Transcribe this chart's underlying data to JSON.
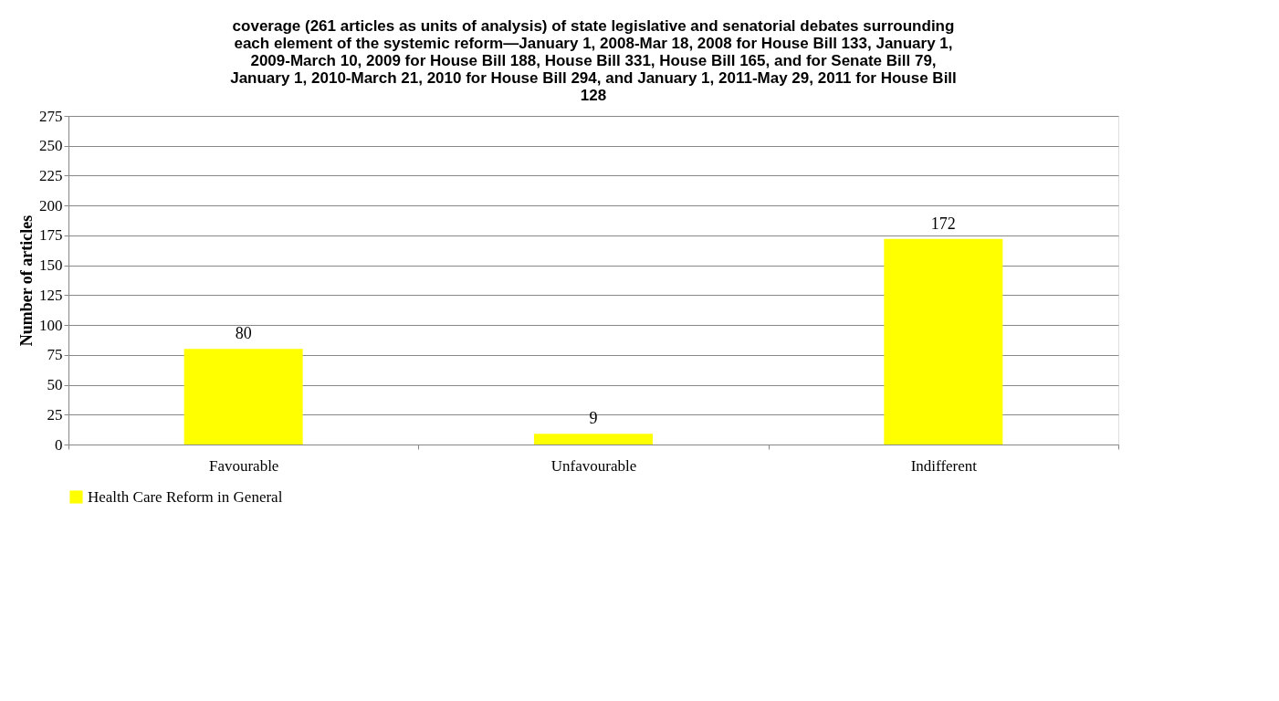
{
  "chart_data": {
    "type": "bar",
    "title": "coverage (261 articles as units of analysis) of state legislative and senatorial debates surrounding each element of the systemic reform—January 1, 2008-Mar 18, 2008 for House Bill 133, January 1, 2009-March 10, 2009 for House Bill 188, House Bill 331, House Bill 165, and for Senate Bill 79, January 1, 2010-March 21, 2010 for House Bill 294, and January 1, 2011-May 29, 2011 for House Bill 128",
    "ylabel": "Number of articles",
    "categories": [
      "Favourable",
      "Unfavourable",
      "Indifferent"
    ],
    "series": [
      {
        "name": "Health Care Reform in General",
        "color": "#ffff00",
        "values": [
          80,
          9,
          172
        ]
      }
    ],
    "ylim": [
      0,
      275
    ],
    "yticks": [
      0,
      25,
      50,
      75,
      100,
      125,
      150,
      175,
      200,
      225,
      250,
      275
    ],
    "grid": "y",
    "legend": "bottom",
    "data_labels": true
  }
}
